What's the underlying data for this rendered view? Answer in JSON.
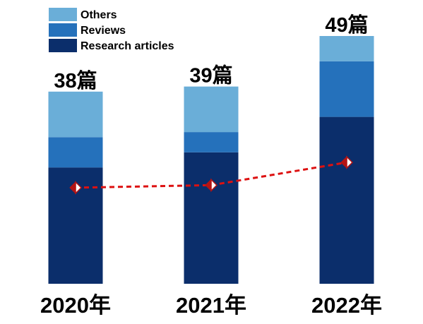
{
  "chart_data": {
    "type": "bar",
    "stacked": true,
    "categories": [
      "2020年",
      "2021年",
      "2022年"
    ],
    "totals_labels": [
      "38篇",
      "39篇",
      "49篇"
    ],
    "series": [
      {
        "name": "Research articles",
        "values": [
          23,
          26,
          33
        ],
        "color": "#0b2e6b"
      },
      {
        "name": "Reviews",
        "values": [
          6,
          4,
          11
        ],
        "color": "#2571bb"
      },
      {
        "name": "Others",
        "values": [
          9,
          9,
          5
        ],
        "color": "#6aaed8"
      }
    ],
    "trend_line": {
      "type": "line",
      "style": "dashed",
      "color": "#dd1111",
      "marker": "diamond",
      "marker_color": "#b41414",
      "values": [
        19,
        19.5,
        24
      ]
    },
    "legend": {
      "position": "top-left",
      "order": [
        "Others",
        "Reviews",
        "Research articles"
      ]
    },
    "ylim": [
      0,
      49
    ],
    "grid": false
  }
}
